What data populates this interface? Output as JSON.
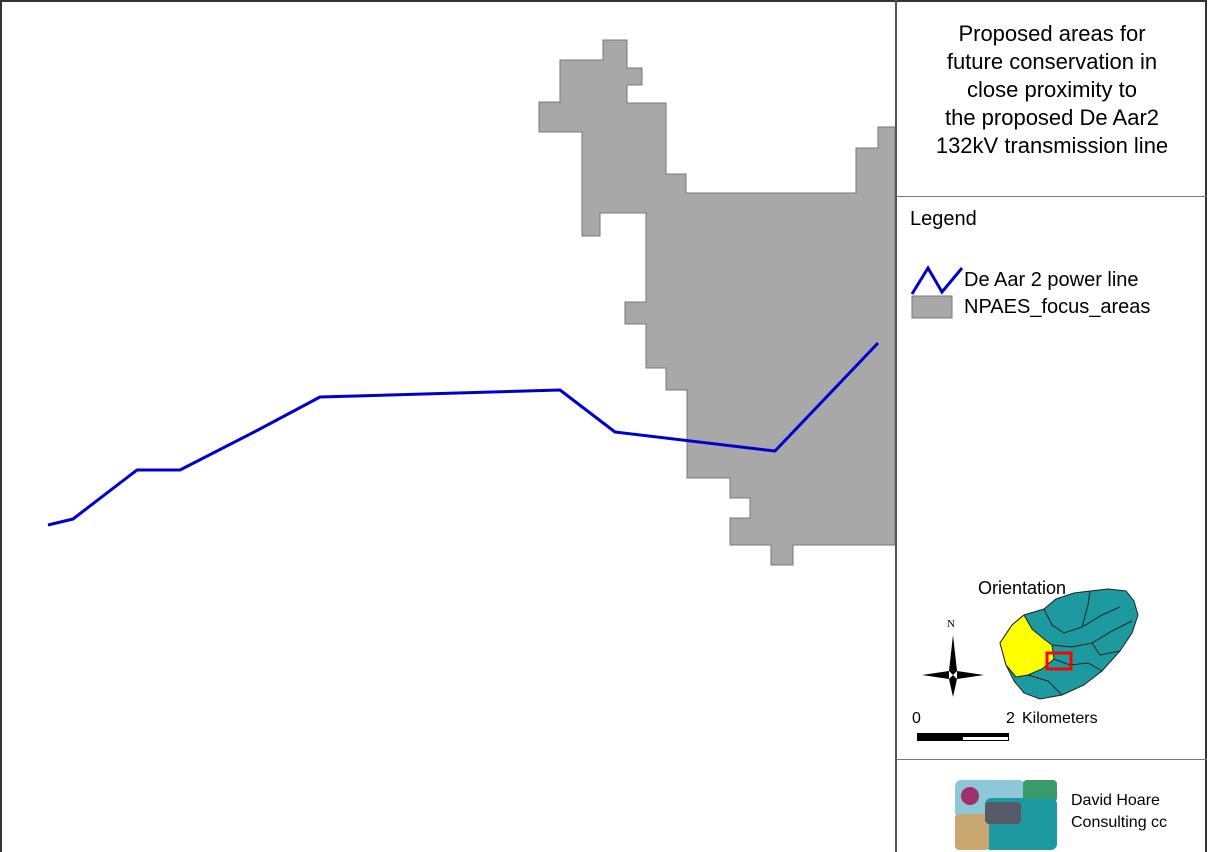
{
  "title": "Proposed areas for\nfuture conservation in\nclose proximity to\nthe proposed De Aar2\n132kV transmission line",
  "legend": {
    "heading": "Legend",
    "items": [
      {
        "label": "De Aar 2 power line",
        "symbol": "line",
        "color": "#0000cc"
      },
      {
        "label": "NPAES_focus_areas",
        "symbol": "polygon",
        "color": "#a8a8a8"
      }
    ]
  },
  "orientation": {
    "label": "Orientation",
    "north": "N",
    "country_color": "#1c9aa0",
    "province_color": "#ffff00",
    "study_area_color": "#ff0000"
  },
  "scale_bar": {
    "start": "0",
    "end": "2",
    "unit": "Kilometers"
  },
  "credit": {
    "company": "David Hoare\nConsulting cc"
  },
  "colors": {
    "power_line": "#0000cc",
    "focus_area": "#a8a8a8"
  }
}
